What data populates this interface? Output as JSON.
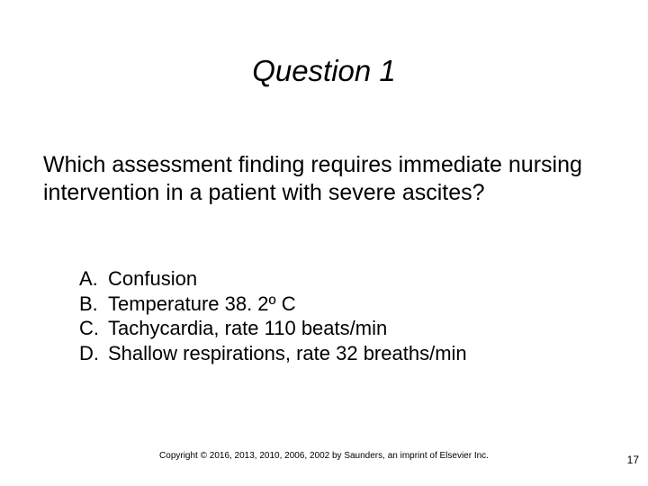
{
  "title": "Question 1",
  "question": "Which assessment finding requires immediate nursing intervention in a patient with severe ascites?",
  "options": [
    {
      "letter": "A.",
      "text": "Confusion"
    },
    {
      "letter": "B.",
      "text": "Temperature 38. 2º C"
    },
    {
      "letter": "C.",
      "text": "Tachycardia, rate 110 beats/min"
    },
    {
      "letter": "D.",
      "text": "Shallow respirations, rate 32 breaths/min"
    }
  ],
  "copyright": "Copyright © 2016, 2013, 2010, 2006, 2002 by Saunders, an imprint of Elsevier Inc.",
  "page_number": "17",
  "style": {
    "slide_width": 720,
    "slide_height": 540,
    "background_color": "#ffffff",
    "text_color": "#000000",
    "title_fontsize": 33,
    "title_italic": true,
    "body_fontsize": 25,
    "option_fontsize": 22,
    "copyright_fontsize": 10,
    "pagenum_fontsize": 12
  }
}
